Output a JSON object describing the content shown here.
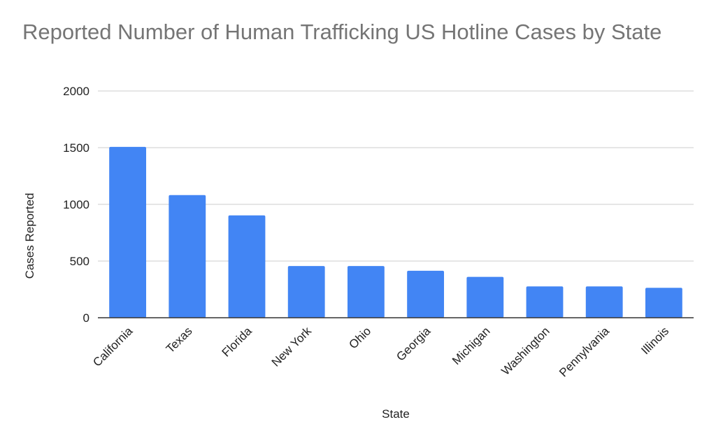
{
  "chart_data": {
    "type": "bar",
    "title": "Reported Number of Human Trafficking US Hotline Cases by State",
    "xlabel": "State",
    "ylabel": "Cases Reported",
    "categories": [
      "California",
      "Texas",
      "Florida",
      "New York",
      "Ohio",
      "Georgia",
      "Michigan",
      "Washington",
      "Pennylvania",
      "Illinois"
    ],
    "values": [
      1507,
      1082,
      903,
      456,
      456,
      414,
      360,
      276,
      276,
      264
    ],
    "ylim": [
      0,
      2000
    ],
    "yticks": [
      "0",
      "500",
      "1000",
      "1500",
      "2000"
    ],
    "grid": true,
    "legend": "none",
    "bar_color": "#4285f4"
  }
}
